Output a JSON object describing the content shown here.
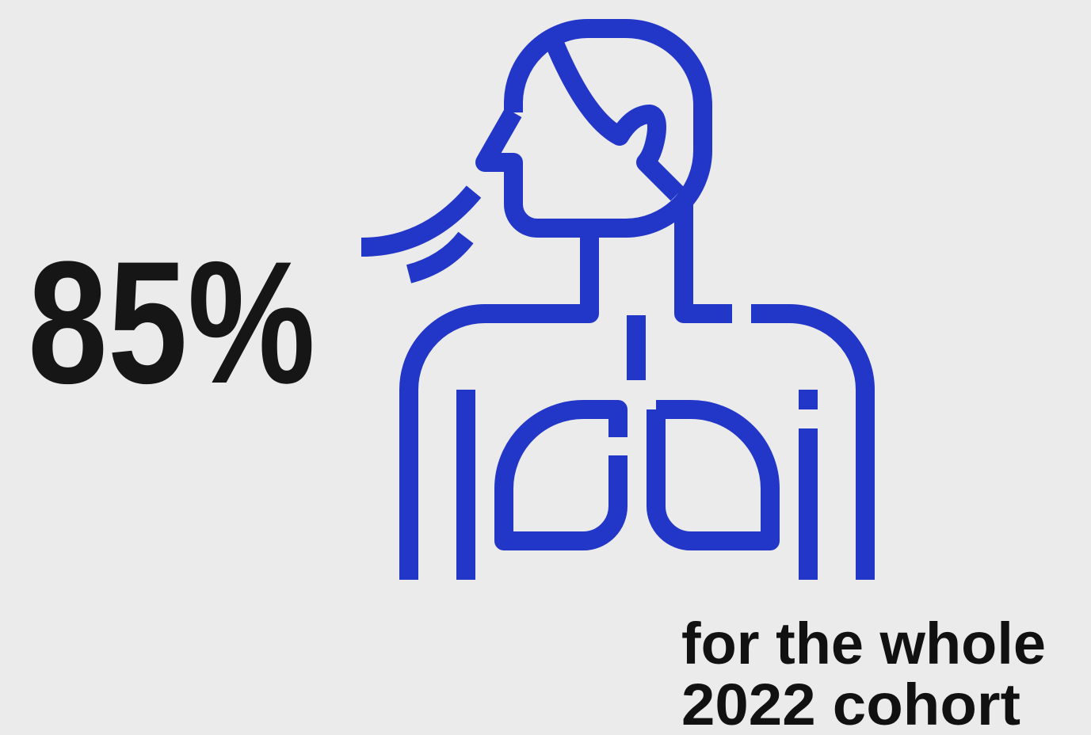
{
  "stat": {
    "value": "85%"
  },
  "caption": {
    "lines": [
      "for the whole",
      "2022 cohort"
    ]
  }
}
